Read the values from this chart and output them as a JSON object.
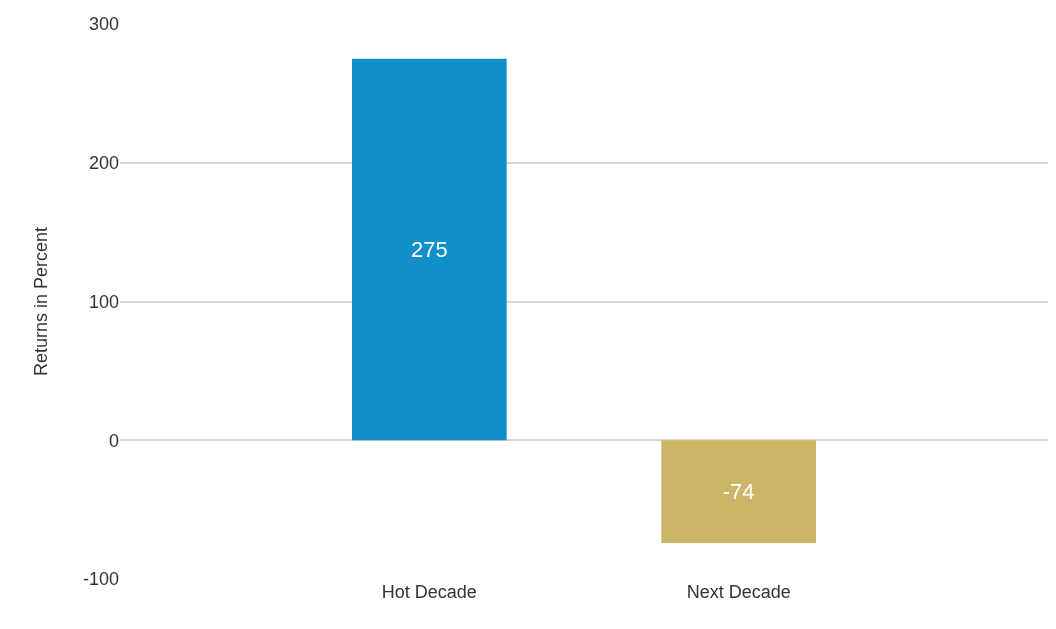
{
  "chart_data": {
    "type": "bar",
    "ylabel": "Returns in Percent",
    "categories": [
      "Hot Decade",
      "Next Decade"
    ],
    "values": [
      275,
      -74
    ],
    "colors": [
      "#118fc9",
      "#cdb567"
    ],
    "ylim": [
      -100,
      300
    ],
    "yticks": [
      -100,
      0,
      100,
      200,
      300
    ],
    "grid": "y",
    "data_labels": true
  }
}
